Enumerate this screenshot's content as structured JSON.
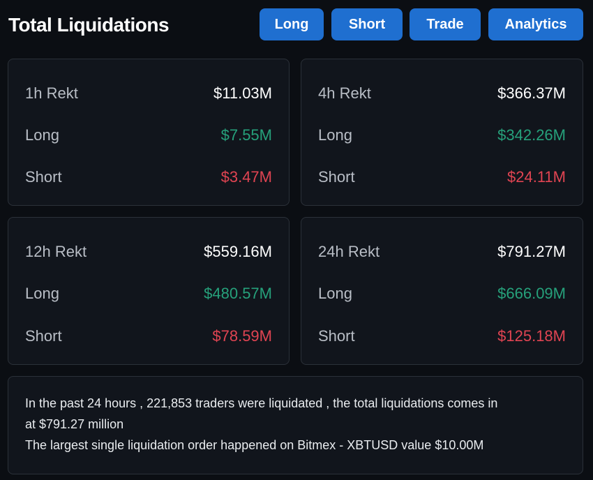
{
  "header": {
    "title": "Total Liquidations",
    "buttons": [
      {
        "label": "Long"
      },
      {
        "label": "Short"
      },
      {
        "label": "Trade"
      },
      {
        "label": "Analytics"
      }
    ]
  },
  "cards": [
    {
      "head_label": "1h Rekt",
      "head_value": "$11.03M",
      "long_label": "Long",
      "long_value": "$7.55M",
      "short_label": "Short",
      "short_value": "$3.47M"
    },
    {
      "head_label": "4h Rekt",
      "head_value": "$366.37M",
      "long_label": "Long",
      "long_value": "$342.26M",
      "short_label": "Short",
      "short_value": "$24.11M"
    },
    {
      "head_label": "12h Rekt",
      "head_value": "$559.16M",
      "long_label": "Long",
      "long_value": "$480.57M",
      "short_label": "Short",
      "short_value": "$78.59M"
    },
    {
      "head_label": "24h Rekt",
      "head_value": "$791.27M",
      "long_label": "Long",
      "long_value": "$666.09M",
      "short_label": "Short",
      "short_value": "$125.18M"
    }
  ],
  "summary": {
    "line1": "In the past 24 hours , 221,853 traders were liquidated , the total liquidations comes in",
    "line2": "at $791.27 million",
    "line3": "The largest single liquidation order happened on Bitmex - XBTUSD value $10.00M"
  },
  "colors": {
    "background": "#0b0e13",
    "card": "#11151c",
    "border": "#2b3139",
    "button": "#1f6fd0",
    "long": "#26a17b",
    "short": "#e04452"
  }
}
